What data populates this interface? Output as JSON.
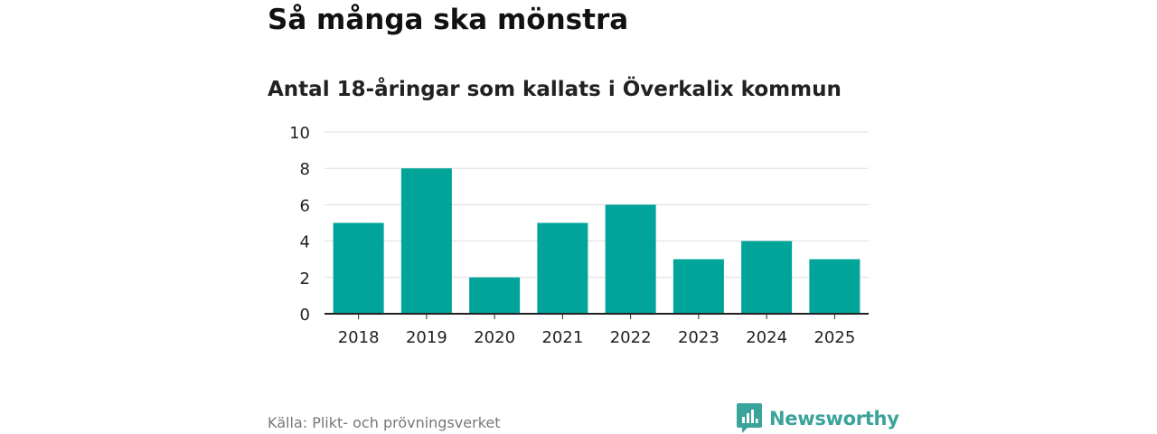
{
  "header": {
    "title": "Så många ska mönstra",
    "subtitle": "Antal 18-åringar som kallats i Överkalix kommun"
  },
  "chart_data": {
    "type": "bar",
    "categories": [
      "2018",
      "2019",
      "2020",
      "2021",
      "2022",
      "2023",
      "2024",
      "2025"
    ],
    "values": [
      5,
      8,
      2,
      5,
      6,
      3,
      4,
      3
    ],
    "ylim": [
      0,
      10
    ],
    "yticks": [
      "0",
      "2",
      "4",
      "6",
      "8",
      "10"
    ],
    "grid": true,
    "bar_color": "#00a499"
  },
  "footer": {
    "source": "Källa: Plikt- och prövningsverket",
    "brand": "Newsworthy",
    "brand_logo_icon": "bar-chart-speech-bubble-icon",
    "brand_color": "#3aa39a"
  }
}
